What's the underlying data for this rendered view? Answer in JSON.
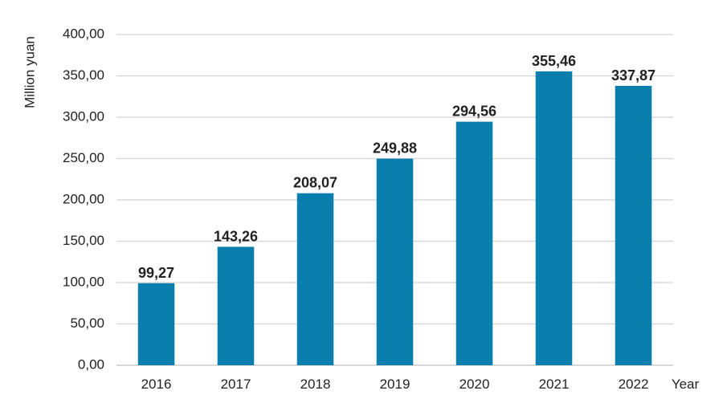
{
  "chart_data": {
    "type": "bar",
    "title": "",
    "xlabel": "Year",
    "ylabel": "Million  yuan",
    "categories": [
      "2016",
      "2017",
      "2018",
      "2019",
      "2020",
      "2021",
      "2022"
    ],
    "values": [
      99.27,
      143.26,
      208.07,
      249.88,
      294.56,
      355.46,
      337.87
    ],
    "value_labels": [
      "99,27",
      "143,26",
      "208,07",
      "249,88",
      "294,56",
      "355,46",
      "337,87"
    ],
    "ylim": [
      0,
      400
    ],
    "yticks": [
      0,
      50,
      100,
      150,
      200,
      250,
      300,
      350,
      400
    ],
    "ytick_labels": [
      "0,00",
      "50,00",
      "100,00",
      "150,00",
      "200,00",
      "250,00",
      "300,00",
      "350,00",
      "400,00"
    ],
    "grid": true,
    "legend": "none",
    "bar_color": "#0a7eac"
  }
}
